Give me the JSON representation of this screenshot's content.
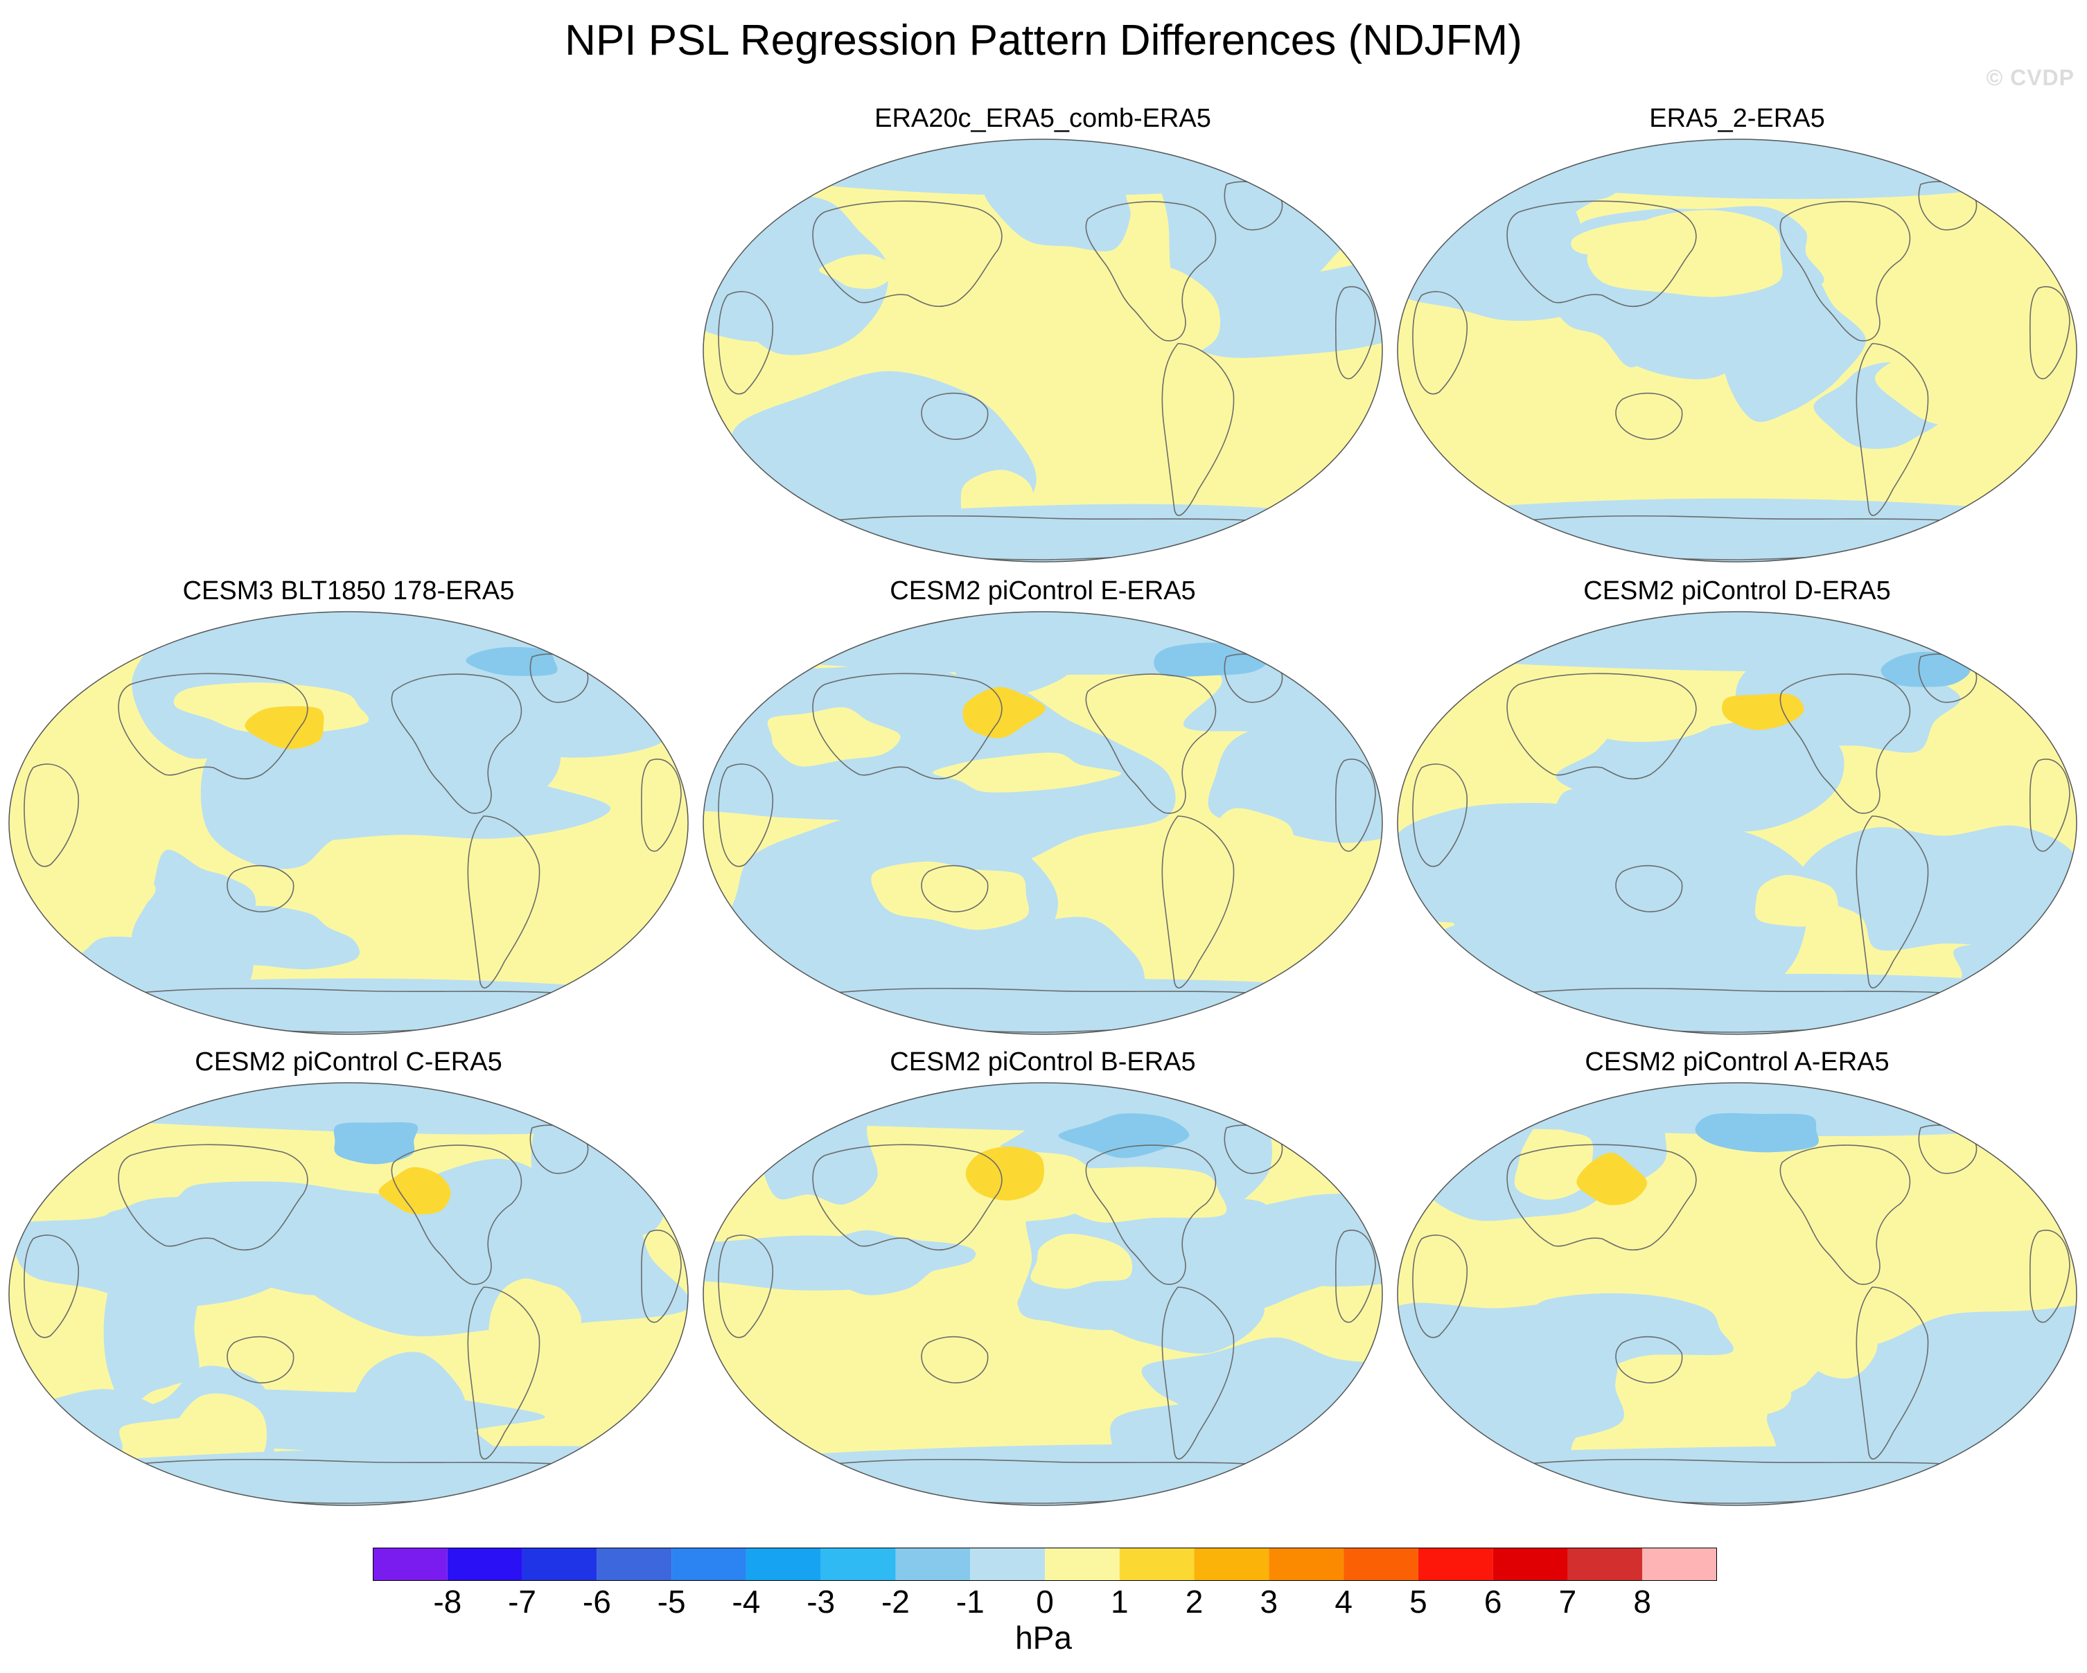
{
  "title": "NPI PSL Regression Pattern Differences (NDJFM)",
  "credit": "© CVDP",
  "panels": [
    {
      "id": "p1",
      "title": "ERA20c_ERA5_comb-ERA5",
      "seed": 3
    },
    {
      "id": "p2",
      "title": "ERA5_2-ERA5",
      "seed": 7
    },
    {
      "id": "p3",
      "title": "CESM3 BLT1850 178-ERA5",
      "seed": 11
    },
    {
      "id": "p4",
      "title": "CESM2 piControl E-ERA5",
      "seed": 17
    },
    {
      "id": "p5",
      "title": "CESM2 piControl D-ERA5",
      "seed": 23
    },
    {
      "id": "p6",
      "title": "CESM2 piControl C-ERA5",
      "seed": 29
    },
    {
      "id": "p7",
      "title": "CESM2 piControl B-ERA5",
      "seed": 31
    },
    {
      "id": "p8",
      "title": "CESM2 piControl A-ERA5",
      "seed": 37
    }
  ],
  "colorbar": {
    "colors": [
      "#7a1cf0",
      "#2a10f5",
      "#1f34e6",
      "#3d67dd",
      "#2c83f2",
      "#16a3f2",
      "#2fbaf3",
      "#86c9ec",
      "#b9dff1",
      "#fbf7a1",
      "#fcd833",
      "#fbb209",
      "#fc8a00",
      "#fb6104",
      "#fd160a",
      "#e00003",
      "#d42f2f",
      "#feb4b4"
    ],
    "labels": [
      "-8",
      "-7",
      "-6",
      "-5",
      "-4",
      "-3",
      "-2",
      "-1",
      "0",
      "1",
      "2",
      "3",
      "4",
      "5",
      "6",
      "7",
      "8"
    ],
    "units": "hPa"
  }
}
